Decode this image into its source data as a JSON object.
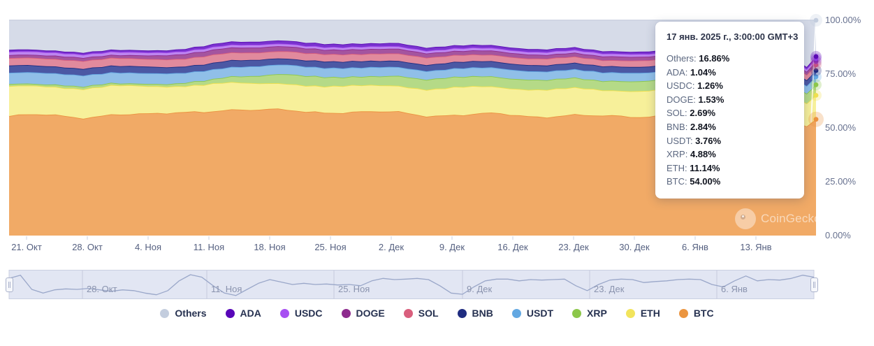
{
  "tooltip": {
    "title": "17 янв. 2025 г., 3:00:00 GMT+3",
    "rows": [
      {
        "name": "Others",
        "value": "16.86%"
      },
      {
        "name": "ADA",
        "value": "1.04%"
      },
      {
        "name": "USDC",
        "value": "1.26%"
      },
      {
        "name": "DOGE",
        "value": "1.53%"
      },
      {
        "name": "SOL",
        "value": "2.69%"
      },
      {
        "name": "BNB",
        "value": "2.84%"
      },
      {
        "name": "USDT",
        "value": "3.76%"
      },
      {
        "name": "XRP",
        "value": "4.88%"
      },
      {
        "name": "ETH",
        "value": "11.14%"
      },
      {
        "name": "BTC",
        "value": "54.00%"
      }
    ]
  },
  "watermark": {
    "text": "CoinGecko"
  },
  "chart_data": {
    "type": "area",
    "stacking": "percent",
    "title": "",
    "x_axis": {
      "labels": [
        "21. Окт",
        "28. Окт",
        "4. Ноя",
        "11. Ноя",
        "18. Ноя",
        "25. Ноя",
        "2. Дек",
        "9. Дек",
        "16. Дек",
        "23. Дек",
        "30. Дек",
        "6. Янв",
        "13. Янв"
      ]
    },
    "y_axis": {
      "labels": [
        "100.00%",
        "75.00%",
        "50.00%",
        "25.00%",
        "0.00%"
      ],
      "range": [
        0,
        100
      ],
      "unit": "%"
    },
    "hover_point": {
      "date": "17 янв. 2025 г., 3:00:00 GMT+3",
      "values": {
        "Others": 16.86,
        "ADA": 1.04,
        "USDC": 1.26,
        "DOGE": 1.53,
        "SOL": 2.69,
        "BNB": 2.84,
        "USDT": 3.76,
        "XRP": 4.88,
        "ETH": 11.14,
        "BTC": 54.0
      }
    },
    "series": [
      {
        "name": "BTC",
        "fill": "#f1aa66",
        "line": "#eb9240",
        "final": 54.0,
        "amp": 1.0,
        "keyframes": [
          55.5,
          56.0,
          55.0,
          56.5,
          56.0,
          57.5,
          58.5,
          58.0,
          58.5,
          57.5,
          57.0,
          57.5,
          56.0,
          56.0,
          56.5,
          55.5,
          56.0,
          55.2,
          55.5,
          56.5,
          56.0,
          55.2,
          53.8,
          54.0
        ]
      },
      {
        "name": "ETH",
        "fill": "#f7f09a",
        "line": "#efe04e",
        "final": 11.14,
        "amp": 0.7,
        "keyframes": [
          13.5,
          13.2,
          13.6,
          13.2,
          12.8,
          12.4,
          12.6,
          12.2,
          12.4,
          12.0,
          12.2,
          12.4,
          12.2,
          12.8,
          12.4,
          12.6,
          12.3,
          12.0,
          12.2,
          11.8,
          11.5,
          11.3,
          11.6,
          11.14
        ]
      },
      {
        "name": "XRP",
        "fill": "#b5da87",
        "line": "#8cc74a",
        "final": 4.88,
        "amp": 0.25,
        "keyframes": [
          1.0,
          1.0,
          1.1,
          1.0,
          1.1,
          1.3,
          2.2,
          3.5,
          4.5,
          4.2,
          4.0,
          4.5,
          4.6,
          4.8,
          4.6,
          4.4,
          4.6,
          4.3,
          4.5,
          4.3,
          4.2,
          4.5,
          5.0,
          4.88
        ]
      },
      {
        "name": "USDT",
        "fill": "#90bfe8",
        "line": "#63a8e2",
        "final": 3.76,
        "amp": 0.2,
        "keyframes": [
          5.3,
          5.2,
          5.2,
          5.0,
          4.9,
          4.7,
          4.5,
          4.4,
          4.3,
          4.4,
          4.2,
          4.1,
          4.0,
          4.0,
          4.1,
          4.0,
          4.0,
          3.9,
          3.9,
          3.8,
          3.8,
          3.8,
          3.76,
          3.76
        ]
      },
      {
        "name": "BNB",
        "fill": "#4b58a4",
        "line": "#1f2c80",
        "final": 2.84,
        "amp": 0.15,
        "keyframes": [
          3.3,
          3.2,
          3.2,
          3.1,
          3.0,
          3.0,
          3.1,
          3.0,
          2.9,
          3.0,
          2.9,
          2.9,
          2.9,
          2.9,
          2.9,
          2.9,
          2.85,
          2.9,
          2.85,
          2.8,
          2.85,
          2.8,
          2.84,
          2.84
        ]
      },
      {
        "name": "SOL",
        "fill": "#e18a9d",
        "line": "#d95f7d",
        "final": 2.69,
        "amp": 0.2,
        "keyframes": [
          3.5,
          3.6,
          3.5,
          3.6,
          3.7,
          3.6,
          3.7,
          3.5,
          3.4,
          3.3,
          3.4,
          3.5,
          3.3,
          3.2,
          3.1,
          3.0,
          3.0,
          2.9,
          2.9,
          2.8,
          2.8,
          2.7,
          2.69,
          2.69
        ]
      },
      {
        "name": "DOGE",
        "fill": "#a4549f",
        "line": "#8e2b8e",
        "final": 1.53,
        "amp": 0.12,
        "keyframes": [
          1.4,
          1.4,
          1.5,
          1.4,
          1.6,
          2.1,
          2.4,
          2.3,
          2.2,
          2.1,
          2.2,
          2.1,
          2.0,
          1.9,
          1.9,
          1.8,
          1.8,
          1.7,
          1.7,
          1.6,
          1.6,
          1.55,
          1.53,
          1.53
        ]
      },
      {
        "name": "USDC",
        "fill": "#bd86ef",
        "line": "#a74ff2",
        "final": 1.26,
        "amp": 0.08,
        "keyframes": [
          1.5,
          1.5,
          1.5,
          1.45,
          1.4,
          1.35,
          1.3,
          1.25,
          1.2,
          1.2,
          1.2,
          1.2,
          1.2,
          1.25,
          1.25,
          1.3,
          1.3,
          1.3,
          1.3,
          1.3,
          1.28,
          1.27,
          1.26,
          1.26
        ]
      },
      {
        "name": "ADA",
        "fill": "#7a33cf",
        "line": "#5a0ab4",
        "final": 1.04,
        "amp": 0.08,
        "keyframes": [
          0.9,
          0.9,
          0.9,
          0.9,
          0.95,
          1.1,
          1.35,
          1.45,
          1.5,
          1.45,
          1.4,
          1.5,
          1.4,
          1.3,
          1.3,
          1.25,
          1.2,
          1.15,
          1.1,
          1.1,
          1.05,
          1.05,
          1.04,
          1.04
        ]
      },
      {
        "name": "Others",
        "fill": "#d6dbe8",
        "line": "#cdd3e2",
        "final": 16.86,
        "remainder": true
      }
    ],
    "legend": [
      {
        "label": "Others",
        "color": "#c3cdde"
      },
      {
        "label": "ADA",
        "color": "#5806b8"
      },
      {
        "label": "USDC",
        "color": "#a74ff2"
      },
      {
        "label": "DOGE",
        "color": "#8e2b8e"
      },
      {
        "label": "SOL",
        "color": "#d95f7d"
      },
      {
        "label": "BNB",
        "color": "#1f2c80"
      },
      {
        "label": "USDT",
        "color": "#63a8e2"
      },
      {
        "label": "XRP",
        "color": "#8cc74a"
      },
      {
        "label": "ETH",
        "color": "#f2e45c"
      },
      {
        "label": "BTC",
        "color": "#eb9540"
      }
    ],
    "legend_position": "bottom"
  },
  "navigator": {
    "labels": [
      "28. Окт",
      "11. Ноя",
      "25. Ноя",
      "9. Дек",
      "23. Дек",
      "6. Янв"
    ],
    "wave": [
      0.25,
      0.12,
      0.7,
      0.85,
      0.72,
      0.68,
      0.7,
      0.66,
      0.72,
      0.78,
      0.72,
      0.75,
      0.85,
      0.92,
      0.75,
      0.35,
      0.1,
      0.2,
      0.55,
      0.85,
      0.95,
      0.7,
      0.45,
      0.3,
      0.4,
      0.5,
      0.45,
      0.5,
      0.48,
      0.52,
      0.5,
      0.55,
      0.35,
      0.25,
      0.3,
      0.28,
      0.25,
      0.3,
      0.55,
      0.85,
      0.9,
      0.6,
      0.35,
      0.28,
      0.28,
      0.35,
      0.3,
      0.32,
      0.3,
      0.28,
      0.55,
      0.75,
      0.5,
      0.32,
      0.28,
      0.3,
      0.42,
      0.38,
      0.35,
      0.3,
      0.28,
      0.3,
      0.5,
      0.6,
      0.35,
      0.15,
      0.35,
      0.3,
      0.32,
      0.25,
      0.12,
      0.2
    ]
  }
}
